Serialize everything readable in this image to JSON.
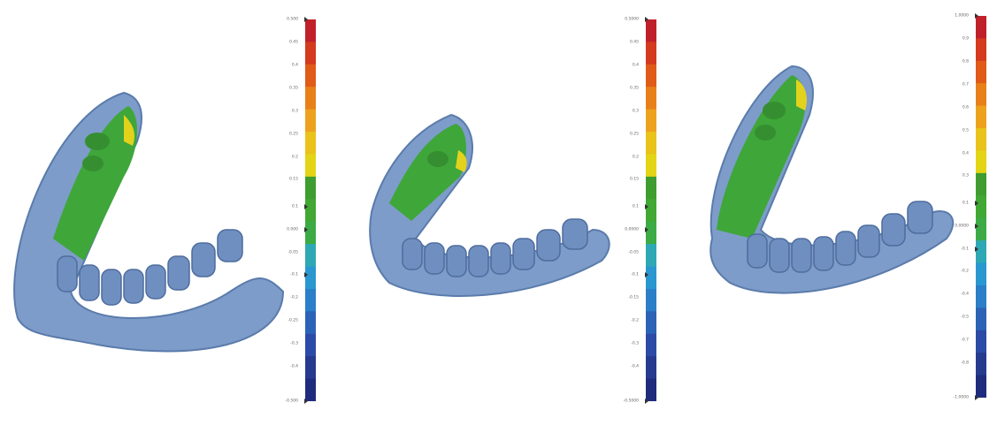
{
  "panels": [
    {
      "name": "panel-1",
      "scale_colors": [
        "#c0202a",
        "#d33a1e",
        "#e05a18",
        "#e8801a",
        "#eda21e",
        "#e9c21a",
        "#e4d416",
        "#3f9d2f",
        "#41a834",
        "#3cab45",
        "#2fa8b5",
        "#2a97d0",
        "#2a7fc8",
        "#2b63b6",
        "#2c4ba6",
        "#263a8e",
        "#1f2b7c"
      ],
      "ticks": [
        {
          "pos": 0.0,
          "label": "0.500",
          "marker": true
        },
        {
          "pos": 0.06,
          "label": "0.45"
        },
        {
          "pos": 0.12,
          "label": "0.4"
        },
        {
          "pos": 0.18,
          "label": "0.35"
        },
        {
          "pos": 0.24,
          "label": "0.3"
        },
        {
          "pos": 0.3,
          "label": "0.25"
        },
        {
          "pos": 0.36,
          "label": "0.2"
        },
        {
          "pos": 0.42,
          "label": "0.15"
        },
        {
          "pos": 0.49,
          "label": "0.1",
          "marker": true
        },
        {
          "pos": 0.55,
          "label": "0.000",
          "marker": true
        },
        {
          "pos": 0.61,
          "label": "-0.05"
        },
        {
          "pos": 0.67,
          "label": "-0.1",
          "marker": true
        },
        {
          "pos": 0.73,
          "label": "-0.2"
        },
        {
          "pos": 0.79,
          "label": "-0.25"
        },
        {
          "pos": 0.85,
          "label": "-0.3"
        },
        {
          "pos": 0.91,
          "label": "-0.4"
        },
        {
          "pos": 1.0,
          "label": "-0.500",
          "marker": true
        }
      ]
    },
    {
      "name": "panel-2",
      "scale_colors": [
        "#c0202a",
        "#d33a1e",
        "#e05a18",
        "#e8801a",
        "#eda21e",
        "#e9c21a",
        "#e4d416",
        "#3f9d2f",
        "#41a834",
        "#3cab45",
        "#2fa8b5",
        "#2a97d0",
        "#2a7fc8",
        "#2b63b6",
        "#2c4ba6",
        "#263a8e",
        "#1f2b7c"
      ],
      "ticks": [
        {
          "pos": 0.0,
          "label": "0.5000",
          "marker": true
        },
        {
          "pos": 0.06,
          "label": "0.45"
        },
        {
          "pos": 0.12,
          "label": "0.4"
        },
        {
          "pos": 0.18,
          "label": "0.35"
        },
        {
          "pos": 0.24,
          "label": "0.3"
        },
        {
          "pos": 0.3,
          "label": "0.25"
        },
        {
          "pos": 0.36,
          "label": "0.2"
        },
        {
          "pos": 0.42,
          "label": "0.15"
        },
        {
          "pos": 0.49,
          "label": "0.1",
          "marker": true
        },
        {
          "pos": 0.55,
          "label": "0.0000",
          "marker": true
        },
        {
          "pos": 0.61,
          "label": "-0.05"
        },
        {
          "pos": 0.67,
          "label": "-0.1",
          "marker": true
        },
        {
          "pos": 0.73,
          "label": "-0.15"
        },
        {
          "pos": 0.79,
          "label": "-0.2"
        },
        {
          "pos": 0.85,
          "label": "-0.3"
        },
        {
          "pos": 0.91,
          "label": "-0.4"
        },
        {
          "pos": 1.0,
          "label": "-0.5000",
          "marker": true
        }
      ]
    },
    {
      "name": "panel-3",
      "scale_colors": [
        "#c0202a",
        "#d33a1e",
        "#e05a18",
        "#e8801a",
        "#eda21e",
        "#e9c21a",
        "#e4d416",
        "#3f9d2f",
        "#41a834",
        "#3cab45",
        "#2fa8b5",
        "#2a97d0",
        "#2a7fc8",
        "#2b63b6",
        "#2c4ba6",
        "#263a8e",
        "#1f2b7c"
      ],
      "ticks": [
        {
          "pos": 0.0,
          "label": "1.0000",
          "marker": true
        },
        {
          "pos": 0.06,
          "label": "0.9"
        },
        {
          "pos": 0.12,
          "label": "0.8"
        },
        {
          "pos": 0.18,
          "label": "0.7"
        },
        {
          "pos": 0.24,
          "label": "0.6"
        },
        {
          "pos": 0.3,
          "label": "0.5"
        },
        {
          "pos": 0.36,
          "label": "0.4"
        },
        {
          "pos": 0.42,
          "label": "0.3"
        },
        {
          "pos": 0.49,
          "label": "0.1",
          "marker": true
        },
        {
          "pos": 0.55,
          "label": "0.0000",
          "marker": true
        },
        {
          "pos": 0.61,
          "label": "-0.1",
          "marker": true
        },
        {
          "pos": 0.67,
          "label": "-0.2"
        },
        {
          "pos": 0.73,
          "label": "-0.4"
        },
        {
          "pos": 0.79,
          "label": "-0.5"
        },
        {
          "pos": 0.85,
          "label": "-0.7"
        },
        {
          "pos": 0.91,
          "label": "-0.8"
        },
        {
          "pos": 1.0,
          "label": "-1.0000",
          "marker": true
        }
      ]
    }
  ],
  "colors": {
    "tissue": "#7d9cc9",
    "tissue_dark": "#5a7bab",
    "green": "#3fa63a",
    "yellow": "#e3d21c"
  }
}
